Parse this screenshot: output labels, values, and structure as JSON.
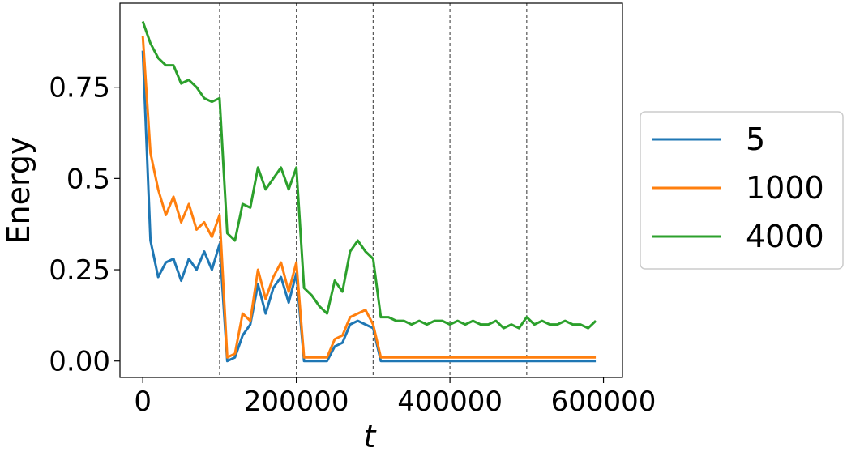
{
  "chart_data": {
    "type": "line",
    "xlabel": "t",
    "ylabel": "Energy",
    "x": [
      0,
      10000,
      20000,
      30000,
      40000,
      50000,
      60000,
      70000,
      80000,
      90000,
      100000,
      110000,
      120000,
      130000,
      140000,
      150000,
      160000,
      170000,
      180000,
      190000,
      200000,
      210000,
      220000,
      230000,
      240000,
      250000,
      260000,
      270000,
      280000,
      290000,
      300000,
      310000,
      320000,
      330000,
      340000,
      350000,
      360000,
      370000,
      380000,
      390000,
      400000,
      410000,
      420000,
      430000,
      440000,
      450000,
      460000,
      470000,
      480000,
      490000,
      500000,
      510000,
      520000,
      530000,
      540000,
      550000,
      560000,
      570000,
      580000,
      590000
    ],
    "series": [
      {
        "name": "5",
        "color": "#1f77b4",
        "values": [
          0.85,
          0.33,
          0.23,
          0.27,
          0.28,
          0.22,
          0.28,
          0.25,
          0.3,
          0.25,
          0.32,
          0.0,
          0.01,
          0.07,
          0.1,
          0.21,
          0.13,
          0.2,
          0.23,
          0.16,
          0.24,
          0.0,
          0.0,
          0.0,
          0.0,
          0.04,
          0.05,
          0.1,
          0.11,
          0.1,
          0.09,
          0.0,
          0.0,
          0.0,
          0.0,
          0.0,
          0.0,
          0.0,
          0.0,
          0.0,
          0.0,
          0.0,
          0.0,
          0.0,
          0.0,
          0.0,
          0.0,
          0.0,
          0.0,
          0.0,
          0.0,
          0.0,
          0.0,
          0.0,
          0.0,
          0.0,
          0.0,
          0.0,
          0.0,
          0.0
        ]
      },
      {
        "name": "1000",
        "color": "#ff7f0e",
        "values": [
          0.89,
          0.57,
          0.47,
          0.4,
          0.45,
          0.38,
          0.43,
          0.36,
          0.38,
          0.34,
          0.4,
          0.01,
          0.02,
          0.13,
          0.11,
          0.25,
          0.17,
          0.23,
          0.27,
          0.19,
          0.27,
          0.01,
          0.01,
          0.01,
          0.01,
          0.06,
          0.07,
          0.12,
          0.13,
          0.14,
          0.1,
          0.01,
          0.01,
          0.01,
          0.01,
          0.01,
          0.01,
          0.01,
          0.01,
          0.01,
          0.01,
          0.01,
          0.01,
          0.01,
          0.01,
          0.01,
          0.01,
          0.01,
          0.01,
          0.01,
          0.01,
          0.01,
          0.01,
          0.01,
          0.01,
          0.01,
          0.01,
          0.01,
          0.01,
          0.01
        ]
      },
      {
        "name": "4000",
        "color": "#2ca02c",
        "values": [
          0.93,
          0.87,
          0.83,
          0.81,
          0.81,
          0.76,
          0.77,
          0.75,
          0.72,
          0.71,
          0.72,
          0.35,
          0.33,
          0.43,
          0.42,
          0.53,
          0.47,
          0.5,
          0.53,
          0.47,
          0.53,
          0.2,
          0.18,
          0.15,
          0.13,
          0.22,
          0.19,
          0.3,
          0.33,
          0.3,
          0.28,
          0.12,
          0.12,
          0.11,
          0.11,
          0.1,
          0.11,
          0.1,
          0.11,
          0.11,
          0.1,
          0.11,
          0.1,
          0.11,
          0.1,
          0.1,
          0.11,
          0.09,
          0.1,
          0.09,
          0.12,
          0.1,
          0.11,
          0.1,
          0.1,
          0.11,
          0.1,
          0.1,
          0.09,
          0.11
        ]
      }
    ],
    "vlines": [
      100000,
      200000,
      300000,
      400000,
      500000
    ],
    "xlim": [
      -29750,
      624750
    ],
    "xticks": [
      0,
      200000,
      400000,
      600000
    ],
    "ylim": [
      -0.045,
      0.98
    ],
    "yticks": [
      {
        "value": 0,
        "label": "0.00"
      },
      0.25,
      0.5,
      0.75
    ],
    "legend": "right"
  }
}
